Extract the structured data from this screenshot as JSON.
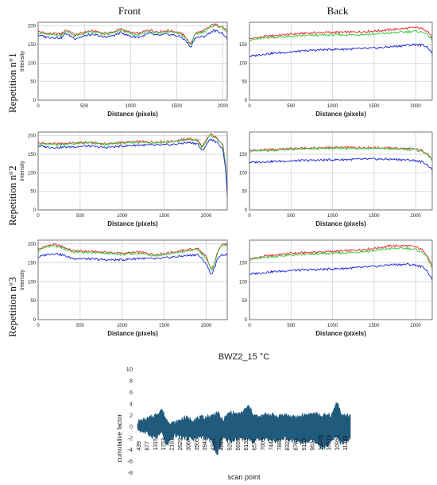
{
  "headers": {
    "front": "Front",
    "back": "Back"
  },
  "rows": [
    "Repetition n°1",
    "Repetition n°2",
    "Repetition n°3"
  ],
  "colors": {
    "red": "#e8232b",
    "green": "#2fcc35",
    "blue": "#1d22d6",
    "grid": "#cccccc",
    "bottom": "#205a7c"
  },
  "chart_data": [
    {
      "id": "r1-front",
      "type": "line",
      "xlabel": "Distance (pixels)",
      "ylabel": "Intensity",
      "xlim": [
        0,
        2048
      ],
      "xticks": [
        0,
        500,
        1000,
        1500,
        2000
      ],
      "ylim": [
        0,
        210
      ],
      "yticks": [
        0,
        50,
        100,
        150,
        200
      ],
      "series": [
        {
          "color": "red",
          "x": [
            0,
            100,
            250,
            300,
            400,
            550,
            650,
            700,
            800,
            900,
            1000,
            1100,
            1200,
            1300,
            1400,
            1500,
            1550,
            1600,
            1650,
            1700,
            1800,
            1900,
            1950,
            2000,
            2048
          ],
          "y": [
            185,
            180,
            178,
            190,
            176,
            186,
            185,
            180,
            183,
            192,
            182,
            180,
            190,
            184,
            188,
            184,
            180,
            170,
            150,
            180,
            188,
            205,
            202,
            198,
            185
          ]
        },
        {
          "color": "green",
          "x": [
            0,
            100,
            250,
            300,
            400,
            550,
            650,
            700,
            800,
            900,
            1000,
            1100,
            1200,
            1300,
            1400,
            1500,
            1550,
            1600,
            1650,
            1700,
            1800,
            1900,
            1950,
            2000,
            2048
          ],
          "y": [
            182,
            177,
            175,
            187,
            173,
            183,
            182,
            177,
            180,
            189,
            179,
            177,
            187,
            181,
            185,
            181,
            177,
            167,
            148,
            177,
            185,
            202,
            199,
            195,
            182
          ]
        },
        {
          "color": "blue",
          "x": [
            0,
            100,
            250,
            300,
            400,
            550,
            650,
            700,
            800,
            900,
            1000,
            1100,
            1200,
            1300,
            1400,
            1500,
            1550,
            1600,
            1650,
            1700,
            1800,
            1900,
            1950,
            2000,
            2048
          ],
          "y": [
            175,
            170,
            168,
            180,
            166,
            176,
            175,
            170,
            173,
            182,
            172,
            170,
            180,
            174,
            178,
            174,
            170,
            160,
            142,
            168,
            172,
            188,
            185,
            180,
            165
          ]
        }
      ]
    },
    {
      "id": "r1-back",
      "type": "line",
      "xlabel": "Distance (pixels)",
      "ylabel": "",
      "xlim": [
        0,
        2200
      ],
      "xticks": [
        0,
        500,
        1000,
        1500,
        2000
      ],
      "ylim": [
        0,
        210
      ],
      "yticks": [
        0,
        50,
        100,
        150
      ],
      "series": [
        {
          "color": "red",
          "x": [
            0,
            200,
            500,
            800,
            1000,
            1200,
            1500,
            1800,
            2000,
            2100,
            2150,
            2200
          ],
          "y": [
            165,
            172,
            178,
            182,
            183,
            183,
            186,
            192,
            196,
            192,
            185,
            168
          ]
        },
        {
          "color": "green",
          "x": [
            0,
            200,
            500,
            800,
            1000,
            1200,
            1500,
            1800,
            2000,
            2100,
            2150,
            2200
          ],
          "y": [
            162,
            168,
            172,
            175,
            176,
            176,
            178,
            183,
            186,
            182,
            176,
            160
          ]
        },
        {
          "color": "blue",
          "x": [
            0,
            200,
            500,
            800,
            1000,
            1200,
            1500,
            1800,
            2000,
            2100,
            2150,
            2200
          ],
          "y": [
            118,
            125,
            130,
            135,
            137,
            138,
            140,
            146,
            150,
            148,
            142,
            125
          ]
        }
      ]
    },
    {
      "id": "r2-front",
      "type": "line",
      "xlabel": "Distance (pixels)",
      "ylabel": "Intensity",
      "xlim": [
        0,
        2250
      ],
      "xticks": [
        0,
        500,
        1000,
        1500,
        2000
      ],
      "ylim": [
        0,
        210
      ],
      "yticks": [
        0,
        50,
        100,
        150,
        200
      ],
      "series": [
        {
          "color": "red",
          "x": [
            0,
            200,
            400,
            600,
            800,
            1000,
            1200,
            1400,
            1600,
            1800,
            1900,
            1950,
            2050,
            2100,
            2150,
            2200,
            2230,
            2250
          ],
          "y": [
            180,
            178,
            180,
            182,
            178,
            182,
            184,
            183,
            185,
            192,
            188,
            170,
            205,
            198,
            190,
            175,
            120,
            50
          ]
        },
        {
          "color": "green",
          "x": [
            0,
            200,
            400,
            600,
            800,
            1000,
            1200,
            1400,
            1600,
            1800,
            1900,
            1950,
            2050,
            2100,
            2150,
            2200,
            2230,
            2250
          ],
          "y": [
            178,
            176,
            178,
            180,
            176,
            180,
            182,
            181,
            183,
            190,
            185,
            168,
            202,
            195,
            188,
            172,
            118,
            48
          ]
        },
        {
          "color": "blue",
          "x": [
            0,
            200,
            400,
            600,
            800,
            1000,
            1200,
            1400,
            1600,
            1800,
            1900,
            1950,
            2050,
            2100,
            2150,
            2200,
            2230,
            2250
          ],
          "y": [
            172,
            168,
            170,
            172,
            168,
            172,
            175,
            174,
            176,
            182,
            178,
            158,
            192,
            185,
            178,
            162,
            110,
            40
          ]
        }
      ]
    },
    {
      "id": "r2-back",
      "type": "line",
      "xlabel": "Distance (pixels)",
      "ylabel": "",
      "xlim": [
        0,
        2200
      ],
      "xticks": [
        0,
        500,
        1000,
        1500,
        2000
      ],
      "ylim": [
        0,
        210
      ],
      "yticks": [
        0,
        50,
        100,
        150
      ],
      "series": [
        {
          "color": "red",
          "x": [
            0,
            200,
            500,
            800,
            1000,
            1200,
            1500,
            1800,
            2000,
            2100,
            2150,
            2200
          ],
          "y": [
            160,
            162,
            165,
            167,
            168,
            168,
            168,
            166,
            164,
            158,
            150,
            135
          ]
        },
        {
          "color": "green",
          "x": [
            0,
            200,
            500,
            800,
            1000,
            1200,
            1500,
            1800,
            2000,
            2100,
            2150,
            2200
          ],
          "y": [
            158,
            160,
            163,
            165,
            166,
            166,
            166,
            164,
            162,
            156,
            148,
            133
          ]
        },
        {
          "color": "blue",
          "x": [
            0,
            200,
            500,
            800,
            1000,
            1200,
            1500,
            1800,
            2000,
            2100,
            2150,
            2200
          ],
          "y": [
            128,
            130,
            132,
            134,
            135,
            136,
            137,
            136,
            133,
            128,
            120,
            108
          ]
        }
      ]
    },
    {
      "id": "r3-front",
      "type": "line",
      "xlabel": "Distance (pixels)",
      "ylabel": "Intensity",
      "xlim": [
        0,
        2250
      ],
      "xticks": [
        0,
        500,
        1000,
        1500,
        2000
      ],
      "ylim": [
        0,
        210
      ],
      "yticks": [
        0,
        50,
        100,
        150,
        200
      ],
      "series": [
        {
          "color": "red",
          "x": [
            0,
            100,
            200,
            300,
            400,
            600,
            800,
            1000,
            1200,
            1400,
            1600,
            1800,
            1900,
            2000,
            2060,
            2100,
            2150,
            2200,
            2250
          ],
          "y": [
            185,
            195,
            198,
            192,
            182,
            180,
            178,
            175,
            178,
            172,
            178,
            185,
            188,
            165,
            132,
            150,
            190,
            200,
            198
          ]
        },
        {
          "color": "green",
          "x": [
            0,
            100,
            200,
            300,
            400,
            600,
            800,
            1000,
            1200,
            1400,
            1600,
            1800,
            1900,
            2000,
            2060,
            2100,
            2150,
            2200,
            2250
          ],
          "y": [
            182,
            192,
            195,
            189,
            179,
            177,
            175,
            172,
            175,
            169,
            175,
            182,
            185,
            162,
            130,
            148,
            187,
            197,
            195
          ]
        },
        {
          "color": "blue",
          "x": [
            0,
            100,
            200,
            300,
            400,
            600,
            800,
            1000,
            1200,
            1400,
            1600,
            1800,
            1900,
            2000,
            2060,
            2100,
            2150,
            2200,
            2250
          ],
          "y": [
            165,
            172,
            175,
            170,
            162,
            160,
            158,
            158,
            162,
            160,
            165,
            170,
            172,
            148,
            118,
            138,
            168,
            172,
            170
          ]
        }
      ]
    },
    {
      "id": "r3-back",
      "type": "line",
      "xlabel": "Distance (pixels)",
      "ylabel": "",
      "xlim": [
        0,
        2200
      ],
      "xticks": [
        0,
        500,
        1000,
        1500,
        2000
      ],
      "ylim": [
        0,
        210
      ],
      "yticks": [
        0,
        50,
        100,
        150
      ],
      "series": [
        {
          "color": "red",
          "x": [
            0,
            200,
            500,
            800,
            1000,
            1200,
            1500,
            1700,
            1900,
            2000,
            2100,
            2150,
            2200
          ],
          "y": [
            160,
            168,
            175,
            178,
            180,
            182,
            188,
            195,
            195,
            192,
            182,
            165,
            140
          ]
        },
        {
          "color": "green",
          "x": [
            0,
            200,
            500,
            800,
            1000,
            1200,
            1500,
            1700,
            1900,
            2000,
            2100,
            2150,
            2200
          ],
          "y": [
            158,
            165,
            170,
            173,
            175,
            177,
            182,
            188,
            188,
            185,
            176,
            160,
            135
          ]
        },
        {
          "color": "blue",
          "x": [
            0,
            200,
            500,
            800,
            1000,
            1200,
            1500,
            1700,
            1900,
            2000,
            2100,
            2150,
            2200
          ],
          "y": [
            120,
            125,
            130,
            132,
            134,
            136,
            140,
            145,
            146,
            144,
            138,
            125,
            105
          ]
        }
      ]
    },
    {
      "id": "bwz2",
      "type": "area",
      "title": "BWZ2_15 °C",
      "xlabel": "scan point",
      "ylabel": "cumulative factor",
      "ylim": [
        -8,
        10
      ],
      "yticks": [
        -8,
        -6,
        -4,
        -2,
        0,
        2,
        4,
        6,
        8,
        10
      ],
      "xticklabels": [
        "439",
        "877",
        "1315",
        "1753",
        "2191",
        "2629",
        "3067",
        "3505",
        "3943",
        "4381",
        "4819",
        "5257",
        "5695",
        "6133",
        "6571",
        "7009",
        "7447",
        "7885",
        "8323",
        "8761",
        "9199",
        "9637",
        "10075",
        "10513",
        "10951",
        "11389"
      ],
      "x": [
        0,
        500,
        1000,
        1300,
        1600,
        2000,
        2500,
        3000,
        3500,
        4000,
        4300,
        4600,
        5000,
        5500,
        6000,
        6300,
        6600,
        7000,
        7500,
        8000,
        8500,
        9000,
        9500,
        10000,
        10500,
        10800,
        11000,
        11300,
        11500
      ],
      "upper": [
        0.8,
        1.2,
        2.0,
        3.0,
        1.0,
        0.5,
        1.5,
        1.2,
        1.5,
        1.8,
        2.5,
        1.0,
        2.5,
        2.0,
        3.5,
        2.0,
        1.5,
        2.2,
        1.8,
        2.0,
        1.5,
        2.0,
        2.2,
        1.8,
        2.0,
        4.5,
        2.0,
        1.8,
        2.0
      ],
      "lower": [
        -0.5,
        -1.2,
        -2.0,
        -1.0,
        -3.5,
        -1.5,
        -2.0,
        -2.2,
        -1.8,
        -2.5,
        -5.2,
        -2.0,
        -2.5,
        -2.0,
        -2.2,
        -2.8,
        -2.0,
        -2.2,
        -2.5,
        -2.0,
        -2.6,
        -2.8,
        -2.5,
        -4.0,
        -2.5,
        -2.0,
        -3.0,
        -2.5,
        -2.0
      ]
    }
  ]
}
